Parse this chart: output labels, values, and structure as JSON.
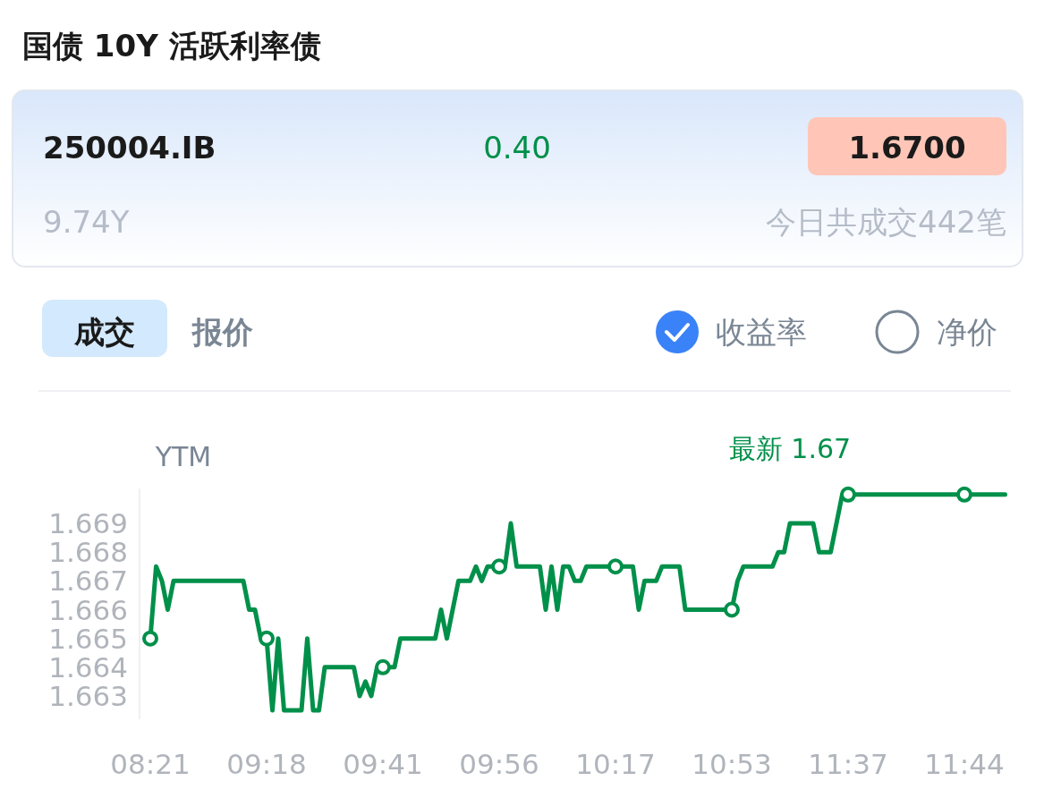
{
  "chart_data": {
    "type": "line",
    "title": "国债 10Y 活跃利率债",
    "ylabel": "YTM",
    "annotations": [
      "250004.IB",
      "0.40",
      "1.6700",
      "9.74Y",
      "今日共成交442笔",
      "成交",
      "报价",
      "收益率",
      "净价",
      "最新 1.67"
    ],
    "categories": [
      "08:21",
      null,
      null,
      null,
      null,
      null,
      null,
      null,
      null,
      null,
      null,
      null,
      null,
      null,
      null,
      null,
      null,
      null,
      null,
      null,
      "09:18",
      null,
      null,
      null,
      null,
      null,
      null,
      null,
      null,
      null,
      null,
      null,
      null,
      null,
      null,
      null,
      null,
      null,
      null,
      null,
      "09:41",
      null,
      null,
      null,
      null,
      null,
      null,
      null,
      null,
      null,
      null,
      null,
      null,
      null,
      null,
      null,
      null,
      null,
      null,
      null,
      "09:56",
      null,
      null,
      null,
      null,
      null,
      null,
      null,
      null,
      null,
      null,
      null,
      null,
      null,
      null,
      null,
      null,
      null,
      null,
      null,
      "10:17",
      null,
      null,
      null,
      null,
      null,
      null,
      null,
      null,
      null,
      null,
      null,
      null,
      null,
      null,
      null,
      null,
      null,
      null,
      null,
      "10:53",
      null,
      null,
      null,
      null,
      null,
      null,
      null,
      null,
      null,
      null,
      null,
      null,
      null,
      null,
      null,
      null,
      null,
      null,
      null,
      "11:37",
      null,
      null,
      null,
      null,
      null,
      null,
      null,
      null,
      null,
      null,
      null,
      null,
      null,
      null,
      null,
      null,
      null,
      null,
      null,
      "11:44",
      null,
      null,
      null,
      null,
      null,
      null,
      null
    ],
    "ylim": [
      1.6622,
      1.6702
    ],
    "yticks": [
      1.663,
      1.664,
      1.665,
      1.666,
      1.667,
      1.668,
      1.669
    ],
    "series": [
      {
        "color": "#00904a",
        "values": [
          1.665,
          1.6675,
          1.667,
          1.666,
          1.667,
          1.667,
          1.667,
          1.667,
          1.667,
          1.667,
          1.667,
          1.667,
          1.667,
          1.667,
          1.667,
          1.667,
          1.667,
          1.666,
          1.666,
          1.665,
          1.665,
          1.6625,
          1.665,
          1.6625,
          1.6625,
          1.6625,
          1.6625,
          1.665,
          1.6625,
          1.6625,
          1.664,
          1.664,
          1.664,
          1.664,
          1.664,
          1.664,
          1.663,
          1.6635,
          1.663,
          1.664,
          1.664,
          1.664,
          1.664,
          1.665,
          1.665,
          1.665,
          1.665,
          1.665,
          1.665,
          1.665,
          1.666,
          1.665,
          1.666,
          1.667,
          1.667,
          1.667,
          1.6675,
          1.667,
          1.6675,
          1.6675,
          1.6675,
          1.6675,
          1.669,
          1.6675,
          1.6675,
          1.6675,
          1.6675,
          1.6675,
          1.666,
          1.6675,
          1.666,
          1.6675,
          1.6675,
          1.667,
          1.667,
          1.6675,
          1.6675,
          1.6675,
          1.6675,
          1.6675,
          1.6675,
          1.6675,
          1.6675,
          1.6675,
          1.666,
          1.667,
          1.667,
          1.667,
          1.6675,
          1.6675,
          1.6675,
          1.6675,
          1.666,
          1.666,
          1.666,
          1.666,
          1.666,
          1.666,
          1.666,
          1.666,
          1.666,
          1.667,
          1.6675,
          1.6675,
          1.6675,
          1.6675,
          1.6675,
          1.6675,
          1.668,
          1.668,
          1.669,
          1.669,
          1.669,
          1.669,
          1.669,
          1.668,
          1.668,
          1.668,
          1.669,
          1.67,
          1.67,
          1.67,
          1.67,
          1.67,
          1.67,
          1.67,
          1.67,
          1.67,
          1.67,
          1.67,
          1.67,
          1.67,
          1.67,
          1.67,
          1.67,
          1.67,
          1.67,
          1.67,
          1.67,
          1.67,
          1.67,
          1.67,
          1.67,
          1.67,
          1.67,
          1.67,
          1.67,
          1.67
        ]
      },
      {
        "type": "scatter",
        "marker": "circle",
        "color": "#00904a",
        "x": [
          "08:21",
          "09:18",
          "09:41",
          "09:56",
          "10:17",
          "10:53",
          "11:37",
          "11:44"
        ],
        "values": [
          1.665,
          1.665,
          1.664,
          1.6675,
          1.6675,
          1.666,
          1.67,
          1.67
        ]
      }
    ]
  }
}
